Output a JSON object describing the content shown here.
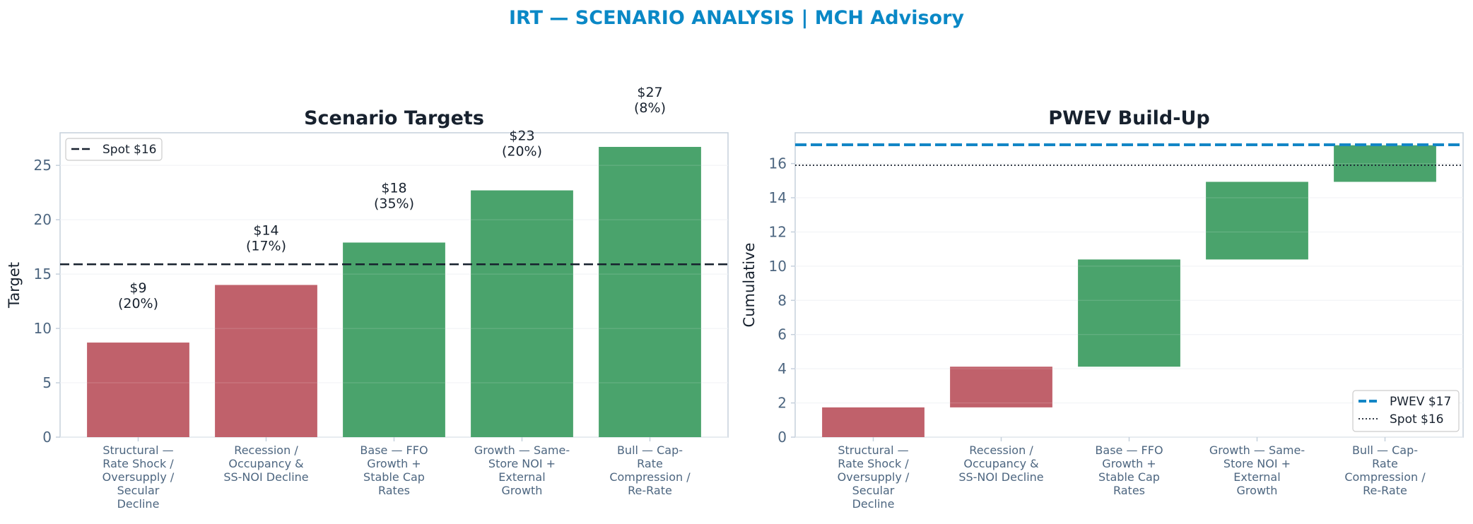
{
  "suptitle": "IRT — SCENARIO ANALYSIS | MCH Advisory",
  "colors": {
    "title": "#0a88c6",
    "text": "#17212e",
    "tick": "#4d6680",
    "axis": "#c5d0dc",
    "grid": "#edf0f3",
    "bear": "#c0616b",
    "bull": "#4aa36c",
    "pwev": "#1386c6",
    "spot": "#17212e"
  },
  "chart_data": [
    {
      "type": "bar",
      "title": "Scenario Targets",
      "xlabel": "",
      "ylabel": "Target",
      "categories": [
        "Structural — Rate Shock / Oversupply / Secular Decline",
        "Recession / Occupancy & SS-NOI Decline",
        "Base — FFO Growth + Stable Cap Rates",
        "Growth — Same-Store NOI + External Growth",
        "Bull — Cap-Rate Compression / Re-Rate"
      ],
      "values": [
        8.7,
        14.0,
        17.9,
        22.7,
        26.7
      ],
      "probabilities": [
        "20%",
        "17%",
        "35%",
        "20%",
        "8%"
      ],
      "data_labels": [
        [
          "$9",
          "(20%)"
        ],
        [
          "$14",
          "(17%)"
        ],
        [
          "$18",
          "(35%)"
        ],
        [
          "$23",
          "(20%)"
        ],
        [
          "$27",
          "(8%)"
        ]
      ],
      "bar_colors": [
        "#c0616b",
        "#c0616b",
        "#4aa36c",
        "#4aa36c",
        "#4aa36c"
      ],
      "reference_lines": [
        {
          "name": "Spot $16",
          "value": 15.9,
          "style": "dashed"
        }
      ],
      "ylim": [
        0,
        28
      ],
      "yticks": [
        0,
        5,
        10,
        15,
        20,
        25
      ],
      "grid": true,
      "legend": {
        "position": "top-left",
        "entries": [
          "Spot $16"
        ]
      }
    },
    {
      "type": "bar",
      "title": "PWEV Build-Up",
      "xlabel": "",
      "ylabel": "Cumulative",
      "categories": [
        "Structural — Rate Shock / Oversupply / Secular Decline",
        "Recession / Occupancy & SS-NOI Decline",
        "Base — FFO Growth + Stable Cap Rates",
        "Growth — Same-Store NOI + External Growth",
        "Bull — Cap-Rate Compression / Re-Rate"
      ],
      "bottoms": [
        0,
        1.74,
        4.12,
        10.39,
        14.93
      ],
      "tops": [
        1.74,
        4.12,
        10.39,
        14.93,
        17.07
      ],
      "bar_colors": [
        "#c0616b",
        "#c0616b",
        "#4aa36c",
        "#4aa36c",
        "#4aa36c"
      ],
      "reference_lines": [
        {
          "name": "PWEV $17",
          "value": 17.1,
          "style": "dashed"
        },
        {
          "name": "Spot $16",
          "value": 15.9,
          "style": "dotted"
        }
      ],
      "ylim": [
        0,
        17.8
      ],
      "yticks": [
        0,
        2,
        4,
        6,
        8,
        10,
        12,
        14,
        16
      ],
      "grid": true,
      "legend": {
        "position": "bottom-right",
        "entries": [
          "PWEV $17",
          "Spot $16"
        ]
      }
    }
  ]
}
